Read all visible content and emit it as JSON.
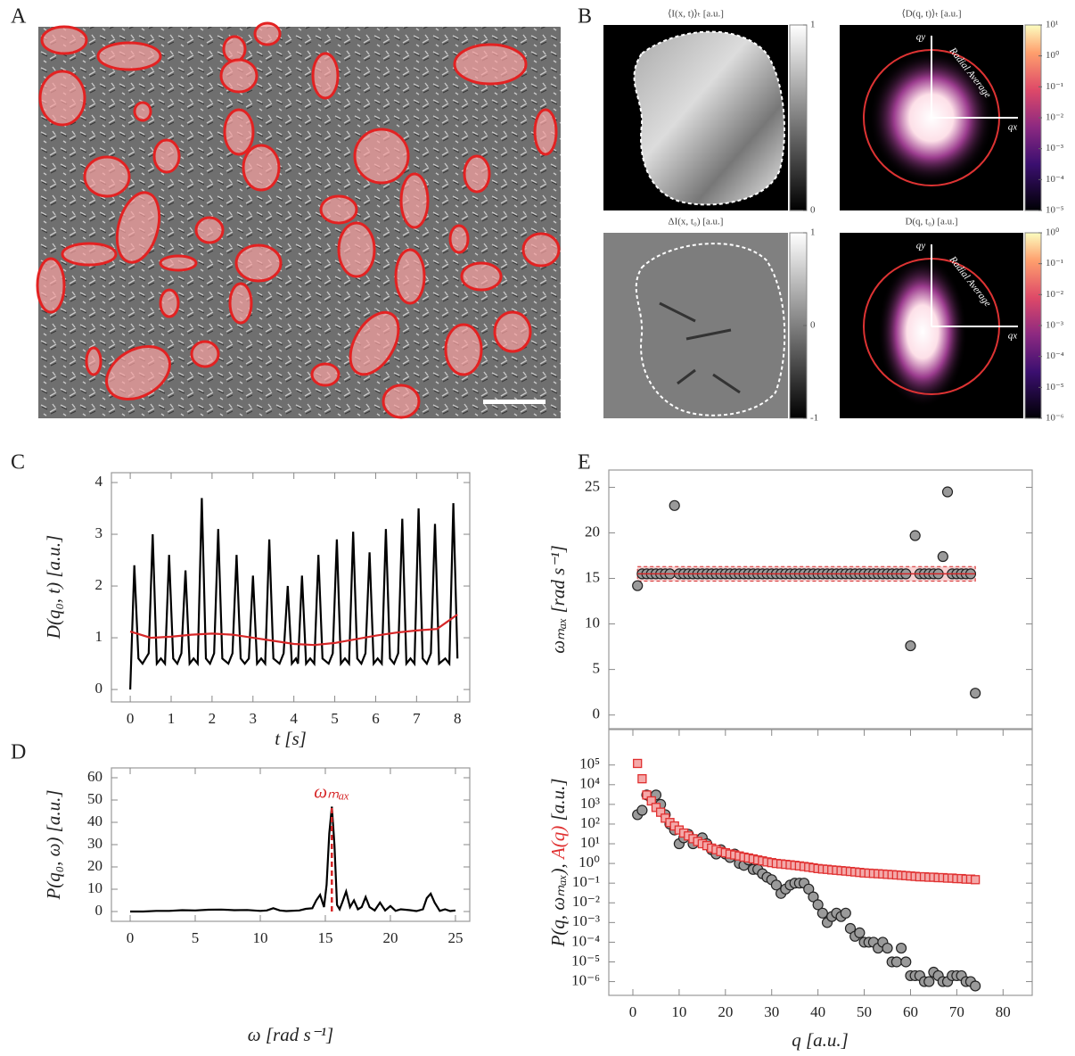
{
  "chart_data": [
    {
      "type": "image",
      "panel": "A"
    },
    {
      "type": "heatmap",
      "panel": "B",
      "title": "⟨I(x, t)⟩ₜ [a.u.]",
      "clim": [
        0,
        1
      ],
      "cticks": [
        0,
        1
      ]
    },
    {
      "type": "heatmap",
      "title": "⟨D(q, t)⟩ₜ [a.u.]",
      "log": true,
      "clim": [
        1e-05,
        10
      ],
      "cticks": [
        {
          "value": 10,
          "label": "10¹"
        },
        {
          "value": 1,
          "label": "10⁰"
        },
        {
          "value": 0.1,
          "label": "10⁻¹"
        },
        {
          "value": 0.01,
          "label": "10⁻²"
        },
        {
          "value": 0.001,
          "label": "10⁻³"
        },
        {
          "value": 0.0001,
          "label": "10⁻⁴"
        },
        {
          "value": 1e-05,
          "label": "10⁻⁵"
        }
      ],
      "annotations": [
        "qy",
        "qx",
        "Radial Average"
      ]
    },
    {
      "type": "heatmap",
      "title": "ΔI(x, t₀) [a.u.]",
      "clim": [
        -1,
        1
      ],
      "cticks": [
        -1,
        0,
        1
      ]
    },
    {
      "type": "heatmap",
      "title": "D(q, t₀) [a.u.]",
      "log": true,
      "clim": [
        1e-06,
        1
      ],
      "cticks": [
        {
          "value": 1,
          "label": "10⁰"
        },
        {
          "value": 0.1,
          "label": "10⁻¹"
        },
        {
          "value": 0.01,
          "label": "10⁻²"
        },
        {
          "value": 0.001,
          "label": "10⁻³"
        },
        {
          "value": 0.0001,
          "label": "10⁻⁴"
        },
        {
          "value": 1e-05,
          "label": "10⁻⁵"
        },
        {
          "value": 1e-06,
          "label": "10⁻⁶"
        }
      ],
      "annotations": [
        "qy",
        "qx",
        "Radial Average"
      ]
    },
    {
      "type": "line",
      "panel": "C",
      "xlabel": "t [s]",
      "ylabel": "D(q₀, t) [a.u.]",
      "xlim": [
        -0.46,
        8.3
      ],
      "ylim": [
        -0.24,
        4.19
      ],
      "xticks": [
        0,
        1,
        2,
        3,
        4,
        5,
        6,
        7,
        8
      ],
      "yticks": [
        0,
        1,
        2,
        3,
        4
      ],
      "series": [
        {
          "color": "#000000",
          "x": [
            0,
            0.1,
            0.2,
            0.3,
            0.45,
            0.55,
            0.65,
            0.75,
            0.85,
            0.95,
            1.05,
            1.15,
            1.25,
            1.35,
            1.45,
            1.55,
            1.65,
            1.75,
            1.85,
            1.95,
            2.05,
            2.15,
            2.25,
            2.4,
            2.5,
            2.6,
            2.7,
            2.8,
            2.9,
            3.0,
            3.1,
            3.2,
            3.3,
            3.4,
            3.5,
            3.65,
            3.75,
            3.85,
            3.95,
            4.05,
            4.1,
            4.2,
            4.3,
            4.4,
            4.5,
            4.6,
            4.7,
            4.85,
            4.95,
            5.05,
            5.15,
            5.25,
            5.35,
            5.45,
            5.55,
            5.65,
            5.75,
            5.85,
            5.95,
            6.05,
            6.15,
            6.25,
            6.35,
            6.45,
            6.55,
            6.65,
            6.75,
            6.85,
            6.95,
            7.05,
            7.15,
            7.25,
            7.35,
            7.45,
            7.55,
            7.7,
            7.8,
            7.9,
            8.0
          ],
          "values": [
            0,
            2.4,
            0.6,
            0.5,
            0.7,
            3.0,
            0.5,
            0.6,
            0.5,
            2.6,
            0.6,
            0.5,
            0.7,
            2.3,
            0.5,
            0.6,
            0.5,
            3.7,
            0.6,
            0.5,
            0.7,
            3.1,
            0.6,
            0.5,
            0.7,
            2.6,
            0.6,
            0.5,
            0.6,
            2.2,
            0.5,
            0.6,
            0.5,
            2.9,
            0.6,
            0.5,
            0.7,
            2.0,
            0.5,
            0.6,
            0.5,
            2.2,
            0.5,
            0.6,
            0.5,
            2.6,
            0.6,
            0.5,
            0.7,
            2.9,
            0.5,
            0.6,
            0.5,
            3.05,
            0.6,
            0.5,
            0.7,
            2.65,
            0.5,
            0.6,
            0.5,
            3.1,
            0.6,
            0.5,
            0.7,
            3.3,
            0.5,
            0.6,
            0.5,
            3.5,
            0.6,
            0.5,
            0.7,
            3.2,
            0.5,
            0.6,
            0.5,
            3.6,
            0.6
          ]
        },
        {
          "color": "#d62728",
          "x": [
            0,
            0.5,
            1,
            1.5,
            2,
            2.5,
            3,
            3.5,
            4,
            4.5,
            5,
            5.5,
            6,
            6.5,
            7,
            7.5,
            8
          ],
          "values": [
            1.12,
            1.0,
            1.02,
            1.06,
            1.08,
            1.06,
            1.0,
            0.94,
            0.88,
            0.86,
            0.9,
            0.97,
            1.04,
            1.1,
            1.14,
            1.17,
            1.45
          ]
        }
      ]
    },
    {
      "type": "line",
      "panel": "D",
      "xlabel": "ω [rad s⁻¹]",
      "ylabel": "P(q₀, ω) [a.u.]",
      "xlim": [
        -1.44,
        26.1
      ],
      "ylim": [
        -4.4,
        64.4
      ],
      "xticks": [
        0,
        5,
        10,
        15,
        20,
        25
      ],
      "yticks": [
        0,
        10,
        20,
        30,
        40,
        50,
        60
      ],
      "series": [
        {
          "color": "#000000",
          "x": [
            0,
            1,
            2,
            3,
            4,
            5,
            6,
            7,
            8,
            9,
            10,
            10.5,
            11,
            11.5,
            12,
            13,
            13.5,
            14,
            14.3,
            14.6,
            14.9,
            15.1,
            15.3,
            15.5,
            15.7,
            15.9,
            16.1,
            16.3,
            16.6,
            16.9,
            17.2,
            17.5,
            17.8,
            18.1,
            18.4,
            18.8,
            19.2,
            19.6,
            20,
            20.4,
            20.8,
            21.5,
            22,
            22.5,
            22.8,
            23.1,
            23.4,
            23.8,
            24.2,
            24.6,
            25
          ],
          "values": [
            0,
            0,
            0.3,
            0.3,
            0.6,
            0.5,
            0.8,
            0.9,
            0.6,
            0.7,
            0.3,
            0.5,
            1.5,
            0.5,
            0.2,
            0.5,
            1.2,
            1.5,
            5,
            7.5,
            2,
            12,
            35,
            47,
            30,
            3,
            1,
            4,
            9,
            2,
            5,
            1,
            2,
            6.5,
            2,
            0.5,
            4,
            0.5,
            2.5,
            0.3,
            1,
            0.6,
            0.2,
            1,
            6,
            8,
            4,
            0.3,
            1,
            0.2,
            0.5
          ]
        }
      ],
      "annotations": [
        {
          "text": "ωₘₐₓ",
          "x": 15.5,
          "y": 46.5,
          "color": "#d62728"
        }
      ]
    },
    {
      "type": "scatter",
      "panel": "E",
      "ylabel": "ωₘₐₓ [rad s⁻¹]",
      "xlim": [
        -5.2,
        86.3
      ],
      "ylim": [
        -1.5,
        26.9
      ],
      "yticks": [
        0,
        5,
        10,
        15,
        20,
        25
      ],
      "band": [
        14.7,
        16.3
      ],
      "mean": 15.5,
      "band_color": "#d62728",
      "series": [
        {
          "color": "#9a9a9a",
          "marker": "circle",
          "x": [
            1,
            2,
            3,
            4,
            5,
            6,
            7,
            8,
            9,
            10,
            11,
            12,
            13,
            14,
            15,
            16,
            17,
            18,
            19,
            20,
            21,
            22,
            23,
            24,
            25,
            26,
            27,
            28,
            29,
            30,
            31,
            32,
            33,
            34,
            35,
            36,
            37,
            38,
            39,
            40,
            41,
            42,
            43,
            44,
            45,
            46,
            47,
            48,
            49,
            50,
            51,
            52,
            53,
            54,
            55,
            56,
            57,
            58,
            59,
            60,
            61,
            62,
            63,
            64,
            65,
            66,
            67,
            68,
            69,
            70,
            71,
            72,
            73,
            74
          ],
          "values": [
            14.2,
            15.5,
            15.5,
            15.5,
            15.5,
            15.5,
            15.5,
            15.5,
            23,
            15.5,
            15.5,
            15.5,
            15.5,
            15.5,
            15.5,
            15.5,
            15.5,
            15.5,
            15.5,
            15.5,
            15.5,
            15.5,
            15.5,
            15.5,
            15.5,
            15.5,
            15.5,
            15.5,
            15.5,
            15.5,
            15.5,
            15.5,
            15.5,
            15.5,
            15.5,
            15.5,
            15.5,
            15.5,
            15.5,
            15.5,
            15.5,
            15.5,
            15.5,
            15.5,
            15.5,
            15.5,
            15.5,
            15.5,
            15.5,
            15.5,
            15.5,
            15.5,
            15.5,
            15.5,
            15.5,
            15.5,
            15.5,
            15.5,
            15.5,
            7.6,
            19.7,
            15.5,
            15.5,
            15.5,
            15.5,
            15.5,
            17.4,
            24.5,
            15.5,
            15.5,
            15.5,
            15.5,
            15.5,
            2.4
          ]
        }
      ]
    },
    {
      "type": "scatter",
      "xlabel": "q [a.u.]",
      "ylabel": "[a.u.]",
      "yscale": "log",
      "xlim": [
        -5.2,
        86.3
      ],
      "ylim": [
        2e-07,
        6300000
      ],
      "xticks": [
        0,
        10,
        20,
        30,
        40,
        50,
        60,
        70,
        80
      ],
      "yticks": [
        {
          "value": 1e-06,
          "label": "10⁻⁶"
        },
        {
          "value": 1e-05,
          "label": "10⁻⁵"
        },
        {
          "value": 0.0001,
          "label": "10⁻⁴"
        },
        {
          "value": 0.001,
          "label": "10⁻³"
        },
        {
          "value": 0.01,
          "label": "10⁻²"
        },
        {
          "value": 0.1,
          "label": "10⁻¹"
        },
        {
          "value": 1,
          "label": "10⁰"
        },
        {
          "value": 10,
          "label": "10¹"
        },
        {
          "value": 100,
          "label": "10²"
        },
        {
          "value": 1000,
          "label": "10³"
        },
        {
          "value": 10000,
          "label": "10⁴"
        },
        {
          "value": 100000,
          "label": "10⁵"
        }
      ],
      "series": [
        {
          "name": "P(q, ωₘₐₓ),",
          "color": "#9a9a9a",
          "marker": "circle",
          "x": [
            1,
            2,
            3,
            4,
            5,
            6,
            7,
            8,
            9,
            10,
            11,
            12,
            13,
            14,
            15,
            16,
            17,
            18,
            19,
            20,
            21,
            22,
            23,
            24,
            25,
            26,
            27,
            28,
            29,
            30,
            31,
            32,
            33,
            34,
            35,
            36,
            37,
            38,
            39,
            40,
            41,
            42,
            43,
            44,
            45,
            46,
            47,
            48,
            49,
            50,
            51,
            52,
            53,
            54,
            55,
            56,
            57,
            58,
            59,
            60,
            61,
            62,
            63,
            64,
            65,
            66,
            67,
            68,
            69,
            70,
            71,
            72,
            73,
            74
          ],
          "values": [
            300,
            500,
            3000,
            2000,
            3000,
            1000,
            300,
            100,
            50,
            10,
            20,
            30,
            10,
            15,
            20,
            10,
            5,
            3,
            5,
            3,
            2,
            3,
            1,
            0.8,
            1.5,
            0.5,
            0.5,
            0.3,
            0.2,
            0.15,
            0.08,
            0.03,
            0.05,
            0.08,
            0.1,
            0.1,
            0.1,
            0.05,
            0.02,
            0.008,
            0.003,
            0.001,
            0.002,
            0.003,
            0.002,
            0.003,
            0.0005,
            0.0002,
            0.0003,
            0.0001,
            0.0001,
            0.0001,
            5e-05,
            0.0001,
            5e-05,
            1e-05,
            1e-05,
            5e-05,
            1e-05,
            2e-06,
            2e-06,
            2e-06,
            1e-06,
            1e-06,
            3e-06,
            2e-06,
            1e-06,
            1e-06,
            2e-06,
            2e-06,
            2e-06,
            1e-06,
            1e-06,
            6e-07
          ]
        },
        {
          "name": "A(q)",
          "color": "#e03030",
          "marker": "square",
          "x": [
            1,
            2,
            3,
            4,
            5,
            6,
            7,
            8,
            9,
            10,
            11,
            12,
            13,
            14,
            15,
            16,
            17,
            18,
            19,
            20,
            21,
            22,
            23,
            24,
            25,
            26,
            27,
            28,
            29,
            30,
            31,
            32,
            33,
            34,
            35,
            36,
            37,
            38,
            39,
            40,
            41,
            42,
            43,
            44,
            45,
            46,
            47,
            48,
            49,
            50,
            51,
            52,
            53,
            54,
            55,
            56,
            57,
            58,
            59,
            60,
            61,
            62,
            63,
            64,
            65,
            66,
            67,
            68,
            69,
            70,
            71,
            72,
            73,
            74
          ],
          "values": [
            120000,
            20000,
            3000,
            1500,
            700,
            400,
            200,
            120,
            80,
            50,
            35,
            25,
            18,
            13,
            10,
            8,
            6,
            5,
            4,
            3.5,
            3,
            2.7,
            2.4,
            2.1,
            1.9,
            1.7,
            1.5,
            1.35,
            1.2,
            1.1,
            1.0,
            0.95,
            0.9,
            0.85,
            0.8,
            0.75,
            0.7,
            0.65,
            0.6,
            0.55,
            0.52,
            0.5,
            0.47,
            0.45,
            0.43,
            0.41,
            0.39,
            0.37,
            0.35,
            0.33,
            0.32,
            0.31,
            0.3,
            0.29,
            0.28,
            0.27,
            0.26,
            0.25,
            0.24,
            0.23,
            0.22,
            0.21,
            0.21,
            0.2,
            0.2,
            0.19,
            0.19,
            0.18,
            0.18,
            0.17,
            0.17,
            0.16,
            0.16,
            0.15
          ]
        }
      ]
    }
  ]
}
